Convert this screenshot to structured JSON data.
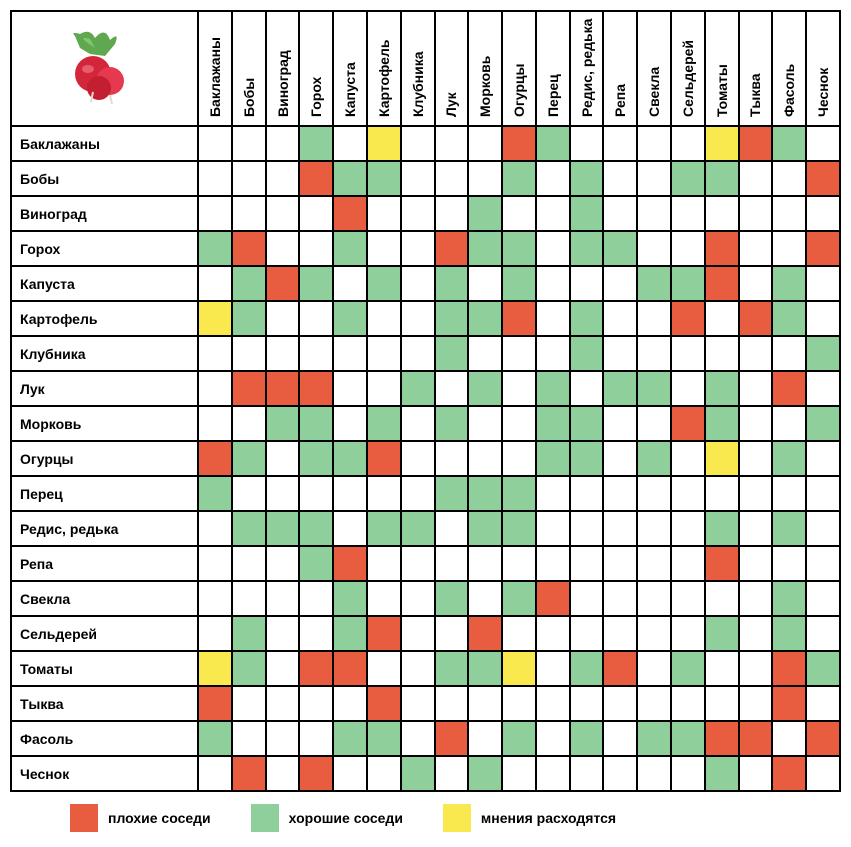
{
  "type": "heatmap",
  "title_icon": "radish",
  "background_color": "#ffffff",
  "border_color": "#000000",
  "border_width": 2,
  "header_fontsize": 14,
  "header_fontweight": "bold",
  "cell_size": 33,
  "row_header_width": 180,
  "col_header_height": 105,
  "colors": {
    "bad": "#e85c3f",
    "good": "#8fcf9b",
    "mixed": "#f9e94e",
    "empty": "#ffffff"
  },
  "legend": [
    {
      "key": "bad",
      "label": "плохие соседи"
    },
    {
      "key": "good",
      "label": "хорошие соседи"
    },
    {
      "key": "mixed",
      "label": "мнения расходятся"
    }
  ],
  "columns": [
    "Баклажаны",
    "Бобы",
    "Виноград",
    "Горох",
    "Капуста",
    "Картофель",
    "Клубника",
    "Лук",
    "Морковь",
    "Огурцы",
    "Перец",
    "Редис, редька",
    "Репа",
    "Свекла",
    "Сельдерей",
    "Томаты",
    "Тыква",
    "Фасоль",
    "Чеснок"
  ],
  "rows": [
    "Баклажаны",
    "Бобы",
    "Виноград",
    "Горох",
    "Капуста",
    "Картофель",
    "Клубника",
    "Лук",
    "Морковь",
    "Огурцы",
    "Перец",
    "Редис, редька",
    "Репа",
    "Свекла",
    "Сельдерей",
    "Томаты",
    "Тыква",
    "Фасоль",
    "Чеснок"
  ],
  "matrix": [
    [
      "",
      "",
      "",
      "good",
      "",
      "mixed",
      "",
      "",
      "",
      "bad",
      "good",
      "",
      "",
      "",
      "",
      "mixed",
      "bad",
      "good",
      ""
    ],
    [
      "",
      "",
      "",
      "bad",
      "good",
      "good",
      "",
      "",
      "",
      "good",
      "",
      "good",
      "",
      "",
      "good",
      "good",
      "",
      "",
      "bad"
    ],
    [
      "",
      "",
      "",
      "",
      "bad",
      "",
      "",
      "",
      "good",
      "",
      "",
      "good",
      "",
      "",
      "",
      "",
      "",
      "",
      ""
    ],
    [
      "good",
      "bad",
      "",
      "",
      "good",
      "",
      "",
      "bad",
      "good",
      "good",
      "",
      "good",
      "good",
      "",
      "",
      "bad",
      "",
      "",
      "bad"
    ],
    [
      "",
      "good",
      "bad",
      "good",
      "",
      "good",
      "",
      "good",
      "",
      "good",
      "",
      "",
      "",
      "good",
      "good",
      "bad",
      "",
      "good",
      ""
    ],
    [
      "mixed",
      "good",
      "",
      "",
      "good",
      "",
      "",
      "good",
      "good",
      "bad",
      "",
      "good",
      "",
      "",
      "bad",
      "",
      "bad",
      "good",
      ""
    ],
    [
      "",
      "",
      "",
      "",
      "",
      "",
      "",
      "good",
      "",
      "",
      "",
      "good",
      "",
      "",
      "",
      "",
      "",
      "",
      "good"
    ],
    [
      "",
      "bad",
      "bad",
      "bad",
      "",
      "",
      "good",
      "",
      "good",
      "",
      "good",
      "",
      "good",
      "good",
      "",
      "good",
      "",
      "bad",
      ""
    ],
    [
      "",
      "",
      "good",
      "good",
      "",
      "good",
      "",
      "good",
      "",
      "",
      "good",
      "good",
      "",
      "",
      "bad",
      "good",
      "",
      "",
      "good"
    ],
    [
      "bad",
      "good",
      "",
      "good",
      "good",
      "bad",
      "",
      "",
      "",
      "",
      "good",
      "good",
      "",
      "good",
      "",
      "mixed",
      "",
      "good",
      ""
    ],
    [
      "good",
      "",
      "",
      "",
      "",
      "",
      "",
      "good",
      "good",
      "good",
      "",
      "",
      "",
      "",
      "",
      "",
      "",
      "",
      ""
    ],
    [
      "",
      "good",
      "good",
      "good",
      "",
      "good",
      "good",
      "",
      "good",
      "good",
      "",
      "",
      "",
      "",
      "",
      "good",
      "",
      "good",
      ""
    ],
    [
      "",
      "",
      "",
      "good",
      "bad",
      "",
      "",
      "",
      "",
      "",
      "",
      "",
      "",
      "",
      "",
      "bad",
      "",
      "",
      ""
    ],
    [
      "",
      "",
      "",
      "",
      "good",
      "",
      "",
      "good",
      "",
      "good",
      "bad",
      "",
      "",
      "",
      "",
      "",
      "",
      "good",
      ""
    ],
    [
      "",
      "good",
      "",
      "",
      "good",
      "bad",
      "",
      "",
      "bad",
      "",
      "",
      "",
      "",
      "",
      "",
      "good",
      "",
      "good",
      ""
    ],
    [
      "mixed",
      "good",
      "",
      "bad",
      "bad",
      "",
      "",
      "good",
      "good",
      "mixed",
      "",
      "good",
      "bad",
      "",
      "good",
      "",
      "",
      "bad",
      "good"
    ],
    [
      "bad",
      "",
      "",
      "",
      "",
      "bad",
      "",
      "",
      "",
      "",
      "",
      "",
      "",
      "",
      "",
      "",
      "",
      "bad",
      ""
    ],
    [
      "good",
      "",
      "",
      "",
      "good",
      "good",
      "",
      "bad",
      "",
      "good",
      "",
      "good",
      "",
      "good",
      "good",
      "bad",
      "bad",
      "",
      "bad"
    ],
    [
      "",
      "bad",
      "",
      "bad",
      "",
      "",
      "good",
      "",
      "good",
      "",
      "",
      "",
      "",
      "",
      "",
      "good",
      "",
      "bad",
      ""
    ]
  ]
}
